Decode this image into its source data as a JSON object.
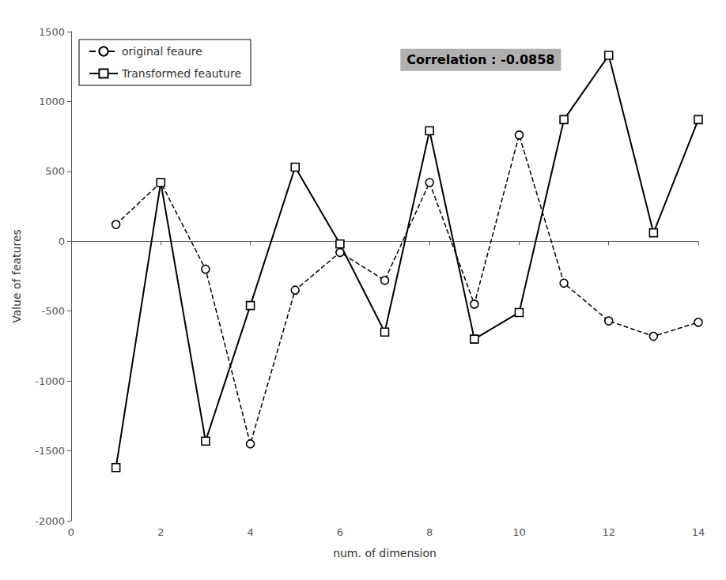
{
  "chart_data": {
    "type": "line",
    "xlabel": "num. of dimension",
    "ylabel": "Value of features",
    "annotation": "Correlation : -0.0858",
    "x": [
      1,
      2,
      3,
      4,
      5,
      6,
      7,
      8,
      9,
      10,
      11,
      12,
      13,
      14
    ],
    "series": [
      {
        "name": "original feaure",
        "color": "#000000",
        "marker": "circle",
        "line_style": "dashed",
        "values": [
          120,
          420,
          -200,
          -1450,
          -350,
          -80,
          -280,
          420,
          -450,
          760,
          -300,
          -570,
          -680,
          -580
        ]
      },
      {
        "name": "Transformed feauture",
        "color": "#000000",
        "marker": "square",
        "line_style": "solid",
        "values": [
          -1620,
          420,
          -1430,
          -460,
          530,
          -20,
          -650,
          790,
          -700,
          -510,
          870,
          1330,
          60,
          870
        ]
      }
    ],
    "xlim": [
      0,
      14
    ],
    "ylim": [
      -2000,
      1500
    ],
    "xticks": [
      0,
      2,
      4,
      6,
      8,
      10,
      12,
      14
    ],
    "yticks": [
      -2000,
      -1500,
      -1000,
      -500,
      0,
      500,
      1000,
      1500
    ],
    "grid": false,
    "legend": "upper left"
  }
}
